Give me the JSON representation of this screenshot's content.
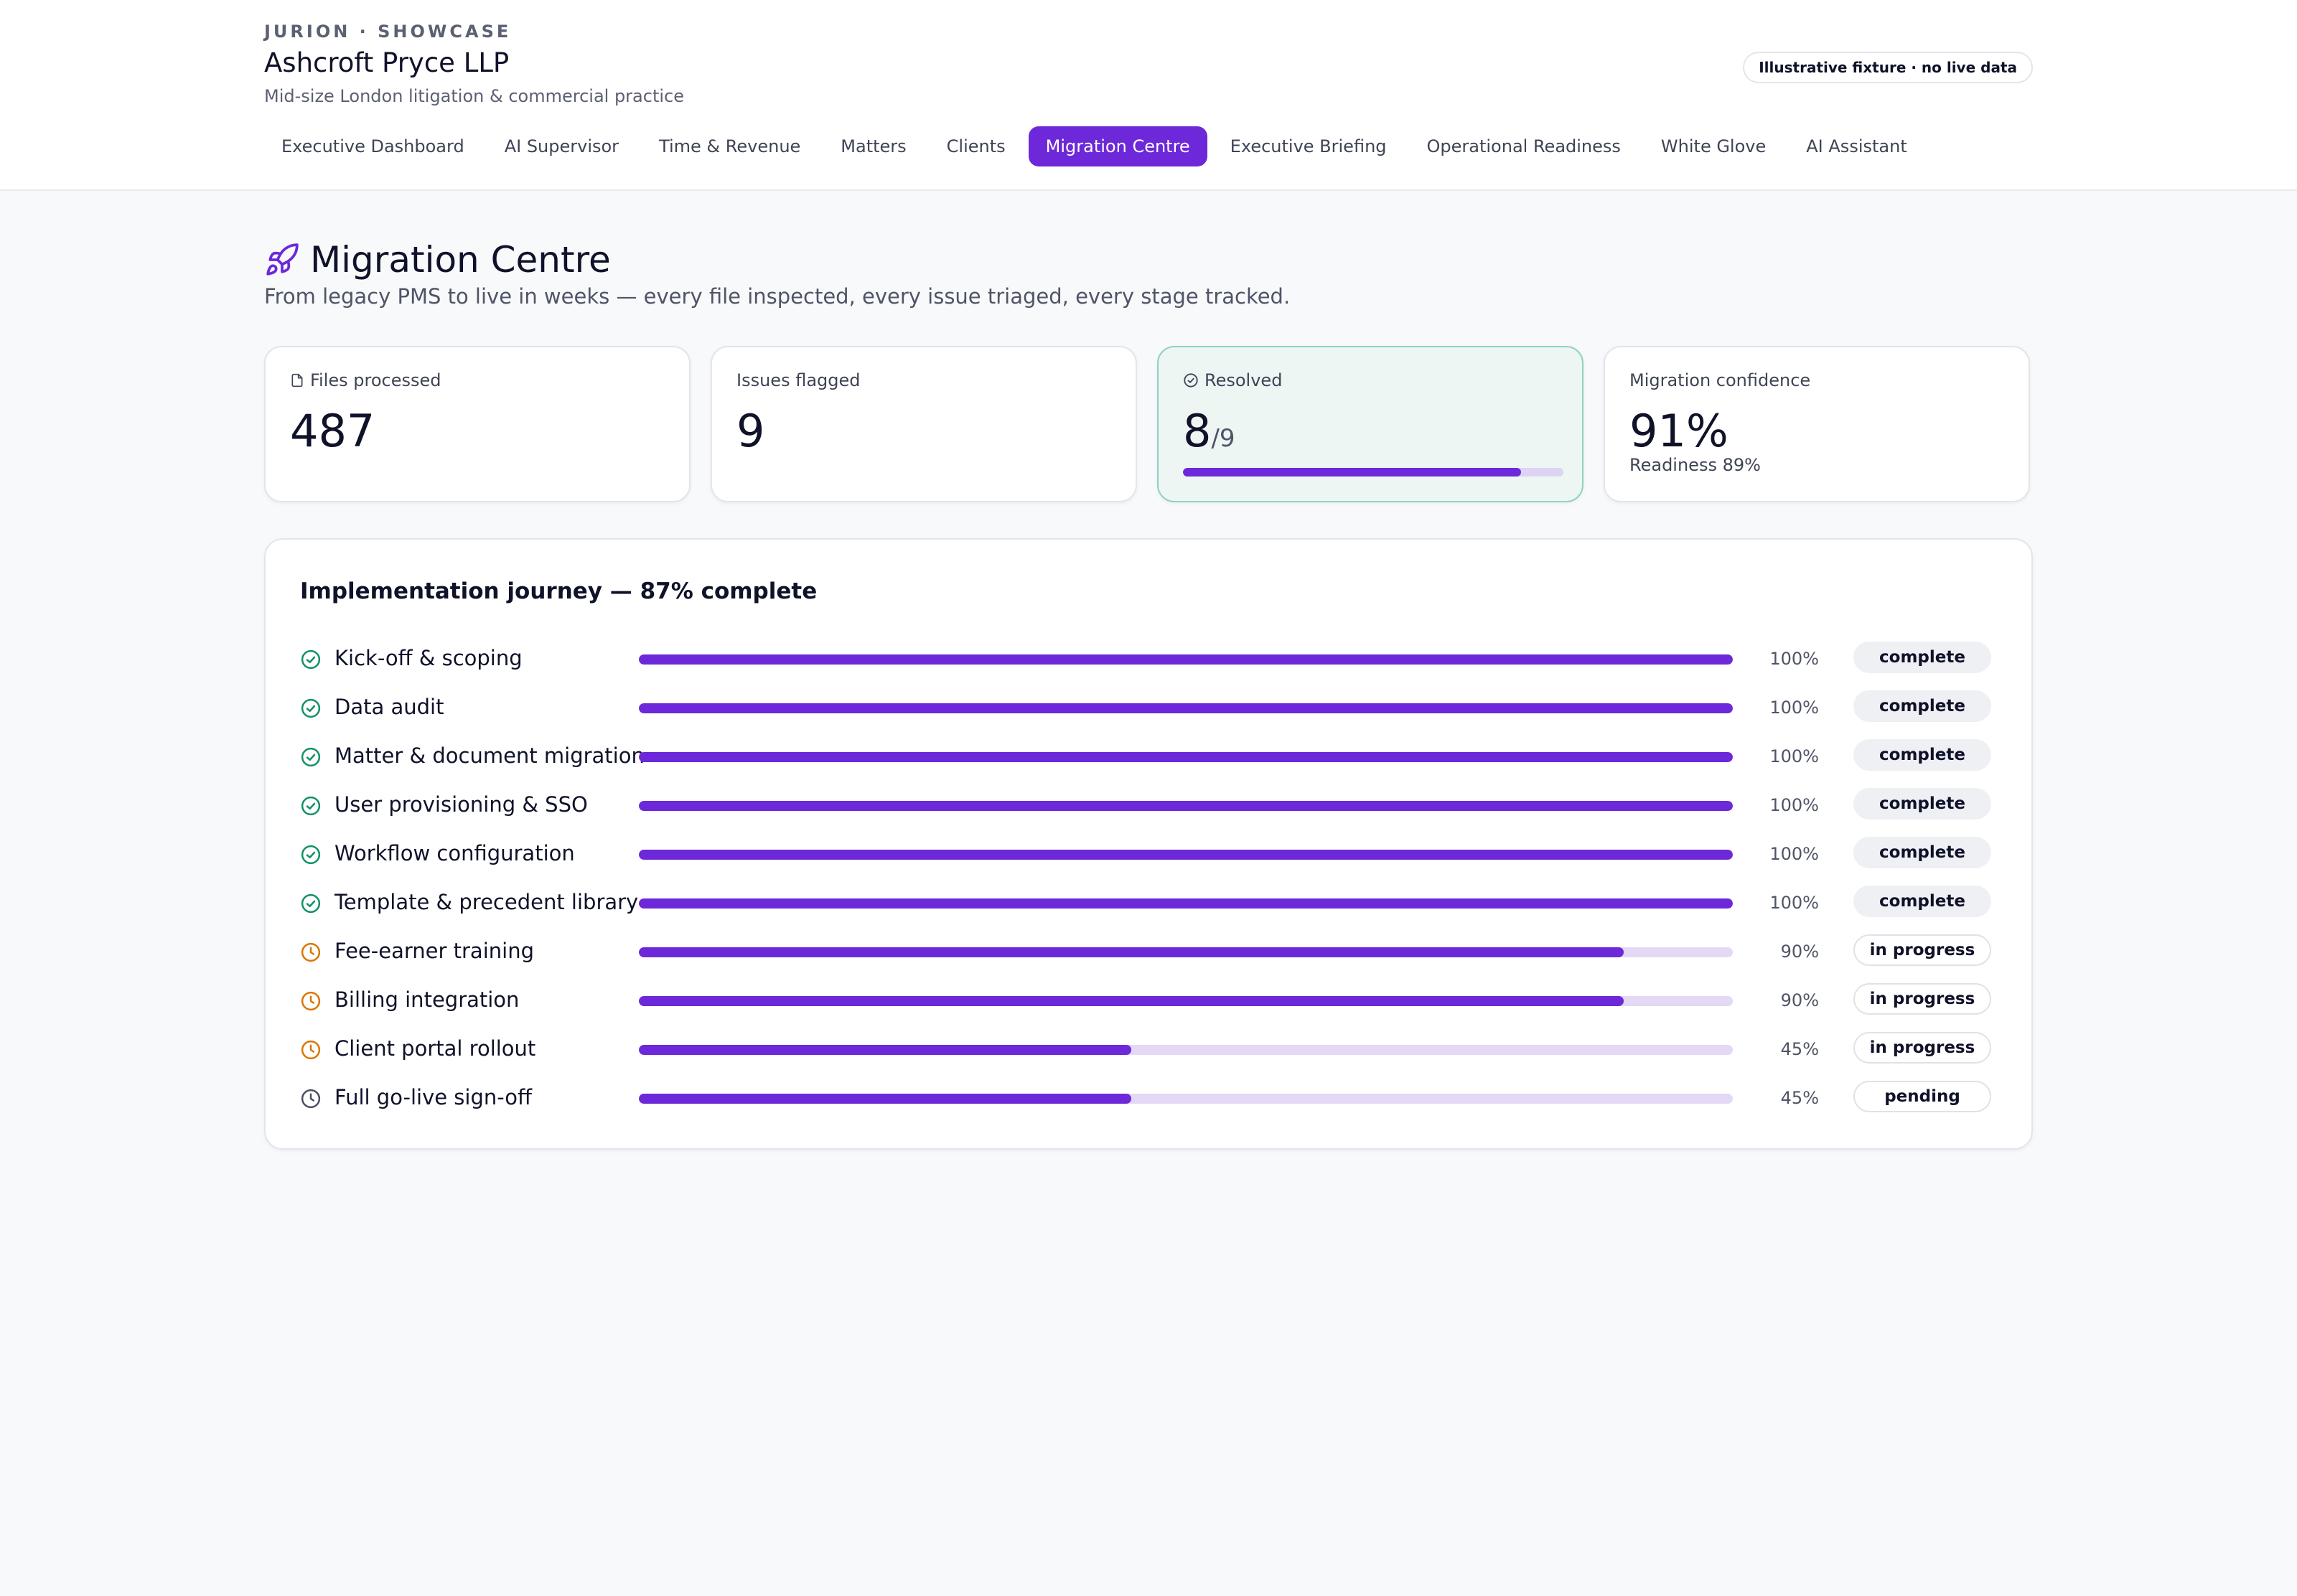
{
  "header": {
    "eyebrow": "JURION · SHOWCASE",
    "firm_name": "Ashcroft Pryce LLP",
    "firm_sub": "Mid-size London litigation & commercial practice",
    "fixture_badge": "Illustrative fixture · no live data"
  },
  "nav": {
    "tabs": [
      {
        "label": "Executive Dashboard",
        "active": false
      },
      {
        "label": "AI Supervisor",
        "active": false
      },
      {
        "label": "Time & Revenue",
        "active": false
      },
      {
        "label": "Matters",
        "active": false
      },
      {
        "label": "Clients",
        "active": false
      },
      {
        "label": "Migration Centre",
        "active": true
      },
      {
        "label": "Executive Briefing",
        "active": false
      },
      {
        "label": "Operational Readiness",
        "active": false
      },
      {
        "label": "White Glove",
        "active": false
      },
      {
        "label": "AI Assistant",
        "active": false
      }
    ]
  },
  "page": {
    "icon": "rocket-icon",
    "title": "Migration Centre",
    "subtitle": "From legacy PMS to live in weeks — every file inspected, every issue triaged, every stage tracked."
  },
  "kpis": {
    "files": {
      "label": "Files processed",
      "value": "487",
      "icon": "file-icon"
    },
    "issues": {
      "label": "Issues flagged",
      "value": "9"
    },
    "resolved": {
      "label": "Resolved",
      "value": "8",
      "of": "/9",
      "icon": "check-circle-icon",
      "progress": 0.889
    },
    "confidence": {
      "label": "Migration confidence",
      "value": "91%",
      "note": "Readiness 89%"
    }
  },
  "journey": {
    "title": "Implementation journey — 87% complete",
    "stages": [
      {
        "label": "Kick-off & scoping",
        "pct_text": "100%",
        "progress": 1.0,
        "status": "complete",
        "icon": "check-circle-icon"
      },
      {
        "label": "Data audit",
        "pct_text": "100%",
        "progress": 1.0,
        "status": "complete",
        "icon": "check-circle-icon"
      },
      {
        "label": "Matter & document migration",
        "pct_text": "100%",
        "progress": 1.0,
        "status": "complete",
        "icon": "check-circle-icon"
      },
      {
        "label": "User provisioning & SSO",
        "pct_text": "100%",
        "progress": 1.0,
        "status": "complete",
        "icon": "check-circle-icon"
      },
      {
        "label": "Workflow configuration",
        "pct_text": "100%",
        "progress": 1.0,
        "status": "complete",
        "icon": "check-circle-icon"
      },
      {
        "label": "Template & precedent library",
        "pct_text": "100%",
        "progress": 1.0,
        "status": "complete",
        "icon": "check-circle-icon"
      },
      {
        "label": "Fee-earner training",
        "pct_text": "90%",
        "progress": 0.9,
        "status": "in progress",
        "icon": "clock-icon"
      },
      {
        "label": "Billing integration",
        "pct_text": "90%",
        "progress": 0.9,
        "status": "in progress",
        "icon": "clock-icon"
      },
      {
        "label": "Client portal rollout",
        "pct_text": "45%",
        "progress": 0.45,
        "status": "in progress",
        "icon": "clock-icon"
      },
      {
        "label": "Full go-live sign-off",
        "pct_text": "45%",
        "progress": 0.45,
        "status": "pending",
        "icon": "clock-icon"
      }
    ]
  },
  "colors": {
    "accent": "#6d28d9",
    "track": "#e3d8f6",
    "complete_icon": "#149167",
    "in_progress_icon": "#d97706",
    "pending_icon": "#4b5060",
    "resolved_card_bg": "#eef6f4",
    "resolved_card_border": "#8fd3c1"
  }
}
